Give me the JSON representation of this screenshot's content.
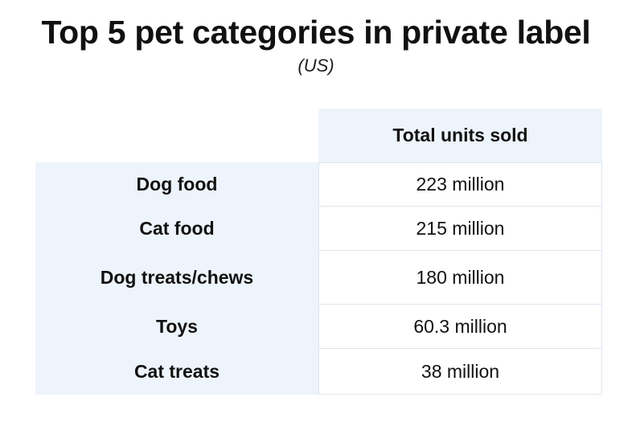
{
  "chart_data": {
    "type": "table",
    "title": "Top 5 pet categories in private label",
    "subtitle": "(US)",
    "columns": [
      "Total units sold"
    ],
    "rows": [
      {
        "category": "Dog food",
        "value_label": "223 million",
        "value": 223000000
      },
      {
        "category": "Cat food",
        "value_label": "215 million",
        "value": 215000000
      },
      {
        "category": "Dog treats/chews",
        "value_label": "180 million",
        "value": 180000000
      },
      {
        "category": "Toys",
        "value_label": "60.3 million",
        "value": 60300000
      },
      {
        "category": "Cat treats",
        "value_label": "38 million",
        "value": 38000000
      }
    ]
  }
}
